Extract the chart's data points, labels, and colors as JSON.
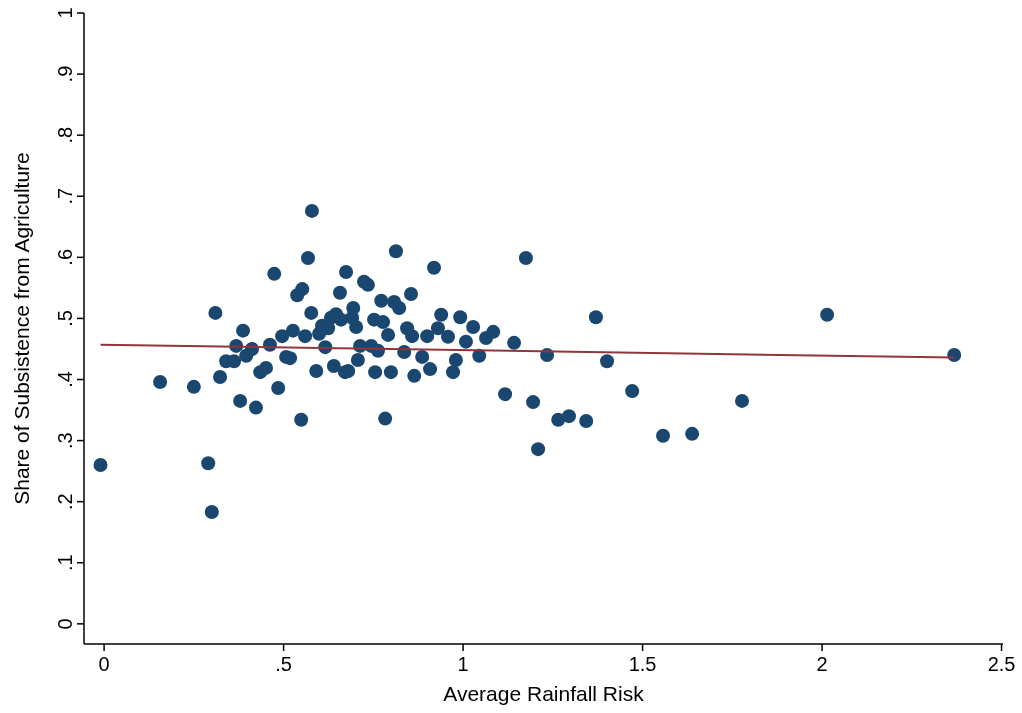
{
  "chart_data": {
    "type": "scatter",
    "xlabel": "Average Rainfall Risk",
    "ylabel": "Share of Subsistence from Agriculture",
    "xlim": [
      -0.056,
      2.504
    ],
    "ylim": [
      -0.033,
      1.0
    ],
    "xticks": [
      0,
      {
        "value": 0.5,
        "label": ".5"
      },
      1,
      {
        "value": 1.5,
        "label": "1.5"
      },
      2,
      {
        "value": 2.5,
        "label": "2.5"
      }
    ],
    "yticks": [
      0,
      {
        "value": 0.1,
        "label": ".1"
      },
      {
        "value": 0.2,
        "label": ".2"
      },
      {
        "value": 0.3,
        "label": ".3"
      },
      {
        "value": 0.4,
        "label": ".4"
      },
      {
        "value": 0.5,
        "label": ".5"
      },
      {
        "value": 0.6,
        "label": ".6"
      },
      {
        "value": 0.7,
        "label": ".7"
      },
      {
        "value": 0.8,
        "label": ".8"
      },
      {
        "value": 0.9,
        "label": ".9"
      },
      1
    ],
    "grid": false,
    "series": [
      {
        "color": "#1a476f",
        "marker": "circle",
        "x": [
          -0.01,
          0.156,
          0.25,
          0.29,
          0.3,
          0.31,
          0.323,
          0.34,
          0.362,
          0.368,
          0.379,
          0.387,
          0.396,
          0.412,
          0.423,
          0.435,
          0.451,
          0.462,
          0.474,
          0.485,
          0.496,
          0.507,
          0.518,
          0.526,
          0.538,
          0.549,
          0.552,
          0.56,
          0.568,
          0.577,
          0.579,
          0.591,
          0.599,
          0.607,
          0.616,
          0.624,
          0.632,
          0.64,
          0.646,
          0.657,
          0.66,
          0.671,
          0.674,
          0.68,
          0.691,
          0.694,
          0.702,
          0.707,
          0.713,
          0.724,
          0.735,
          0.744,
          0.752,
          0.755,
          0.763,
          0.772,
          0.777,
          0.783,
          0.791,
          0.799,
          0.808,
          0.813,
          0.822,
          0.836,
          0.844,
          0.855,
          0.858,
          0.864,
          0.886,
          0.9,
          0.908,
          0.919,
          0.93,
          0.939,
          0.958,
          0.972,
          0.98,
          0.992,
          1.008,
          1.028,
          1.045,
          1.064,
          1.084,
          1.117,
          1.142,
          1.175,
          1.195,
          1.209,
          1.234,
          1.265,
          1.295,
          1.343,
          1.37,
          1.401,
          1.471,
          1.557,
          1.638,
          1.777,
          2.014,
          2.368
        ],
        "values": [
          0.26,
          0.396,
          0.388,
          0.263,
          0.183,
          0.509,
          0.404,
          0.43,
          0.43,
          0.455,
          0.365,
          0.48,
          0.439,
          0.45,
          0.354,
          0.412,
          0.419,
          0.457,
          0.573,
          0.386,
          0.471,
          0.437,
          0.435,
          0.48,
          0.538,
          0.334,
          0.548,
          0.471,
          0.599,
          0.509,
          0.676,
          0.414,
          0.475,
          0.488,
          0.453,
          0.484,
          0.501,
          0.422,
          0.507,
          0.542,
          0.498,
          0.412,
          0.576,
          0.414,
          0.501,
          0.517,
          0.486,
          0.432,
          0.455,
          0.56,
          0.555,
          0.455,
          0.498,
          0.412,
          0.447,
          0.529,
          0.494,
          0.336,
          0.473,
          0.412,
          0.527,
          0.61,
          0.517,
          0.445,
          0.484,
          0.54,
          0.471,
          0.406,
          0.437,
          0.471,
          0.417,
          0.583,
          0.484,
          0.506,
          0.47,
          0.412,
          0.432,
          0.502,
          0.462,
          0.486,
          0.439,
          0.468,
          0.478,
          0.376,
          0.46,
          0.599,
          0.363,
          0.286,
          0.44,
          0.334,
          0.34,
          0.332,
          0.502,
          0.43,
          0.381,
          0.308,
          0.311,
          0.365,
          0.506,
          0.44
        ]
      },
      {
        "type": "line",
        "color": "#90353b",
        "marker": "none",
        "x": [
          -0.01,
          2.368
        ],
        "values": [
          0.457,
          0.436
        ]
      }
    ]
  }
}
